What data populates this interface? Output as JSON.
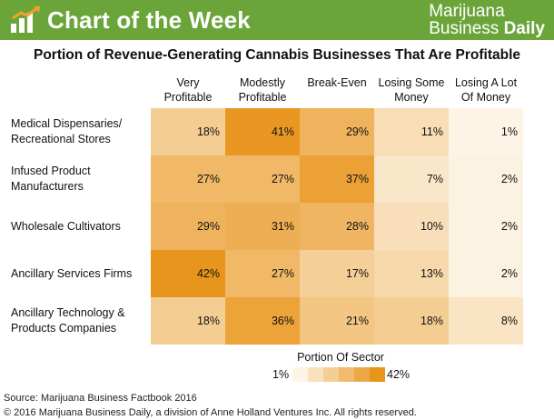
{
  "banner": {
    "title": "Chart of the Week",
    "brand_line1": "Marijuana",
    "brand_line2a": "Business ",
    "brand_line2b": "Daily",
    "color": "#6ba53a"
  },
  "chart_data": {
    "type": "heatmap",
    "title": "Portion of Revenue-Generating Cannabis Businesses That Are Profitable",
    "columns": [
      [
        "Very",
        "Profitable"
      ],
      [
        "Modestly",
        "Profitable"
      ],
      [
        "Break-Even",
        ""
      ],
      [
        "Losing Some",
        "Money"
      ],
      [
        "Losing A Lot",
        "Of Money"
      ]
    ],
    "rows": [
      {
        "label": [
          "Medical Dispensaries/",
          "Recreational Stores"
        ],
        "values": [
          18,
          41,
          29,
          11,
          1
        ]
      },
      {
        "label": [
          "Infused Product",
          "Manufacturers"
        ],
        "values": [
          27,
          27,
          37,
          7,
          2
        ]
      },
      {
        "label": [
          "Wholesale Cultivators",
          ""
        ],
        "values": [
          29,
          31,
          28,
          10,
          2
        ]
      },
      {
        "label": [
          "Ancillary Services Firms",
          ""
        ],
        "values": [
          42,
          27,
          17,
          13,
          2
        ]
      },
      {
        "label": [
          "Ancillary Technology &",
          "Products Companies"
        ],
        "values": [
          18,
          36,
          21,
          18,
          8
        ]
      }
    ],
    "value_suffix": "%",
    "legend": {
      "title": "Portion Of Sector",
      "min_label": "1%",
      "max_label": "42%",
      "min": 1,
      "max": 42
    },
    "color_low": "#fdf4e6",
    "color_high": "#e8951d"
  },
  "footer": {
    "source": "Source: Marijuana Business Factbook 2016",
    "copyright": "© 2016 Marijuana Business Daily, a division of Anne Holland Ventures Inc. All rights reserved."
  }
}
